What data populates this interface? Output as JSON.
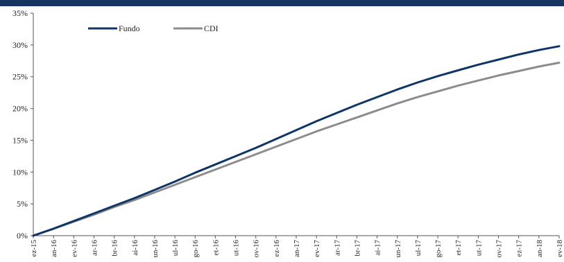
{
  "chart_data": {
    "type": "line",
    "title": "",
    "xlabel": "",
    "ylabel": "",
    "ylim": [
      0,
      35
    ],
    "yticks": [
      "0%",
      "5%",
      "10%",
      "15%",
      "20%",
      "25%",
      "30%",
      "35%"
    ],
    "categories": [
      "ez-15",
      "an-16",
      "ev-16",
      "ar-16",
      "br-16",
      "ai-16",
      "un-16",
      "ul-16",
      "go-16",
      "et-16",
      "ut-16",
      "ov-16",
      "ez-16",
      "an-17",
      "ev-17",
      "ar-17",
      "br-17",
      "ai-17",
      "un-17",
      "ul-17",
      "go-17",
      "et-17",
      "ut-17",
      "ov-17",
      "ez-17",
      "an-18",
      "ev-18"
    ],
    "legend_position": "top-left",
    "grid": false,
    "series": [
      {
        "name": "Fundo",
        "color": "#0f3567",
        "values": [
          0,
          1.1,
          2.3,
          3.5,
          4.7,
          5.9,
          7.2,
          8.5,
          9.9,
          11.2,
          12.5,
          13.8,
          15.2,
          16.6,
          18.0,
          19.3,
          20.6,
          21.8,
          23.0,
          24.1,
          25.1,
          26.0,
          26.9,
          27.7,
          28.5,
          29.2,
          29.8
        ]
      },
      {
        "name": "CDI",
        "color": "#8c8c8c",
        "values": [
          0,
          1.1,
          2.2,
          3.3,
          4.5,
          5.6,
          6.8,
          8.0,
          9.2,
          10.4,
          11.6,
          12.8,
          14.0,
          15.2,
          16.4,
          17.5,
          18.6,
          19.7,
          20.8,
          21.8,
          22.7,
          23.6,
          24.4,
          25.2,
          25.9,
          26.6,
          27.2
        ]
      }
    ]
  }
}
